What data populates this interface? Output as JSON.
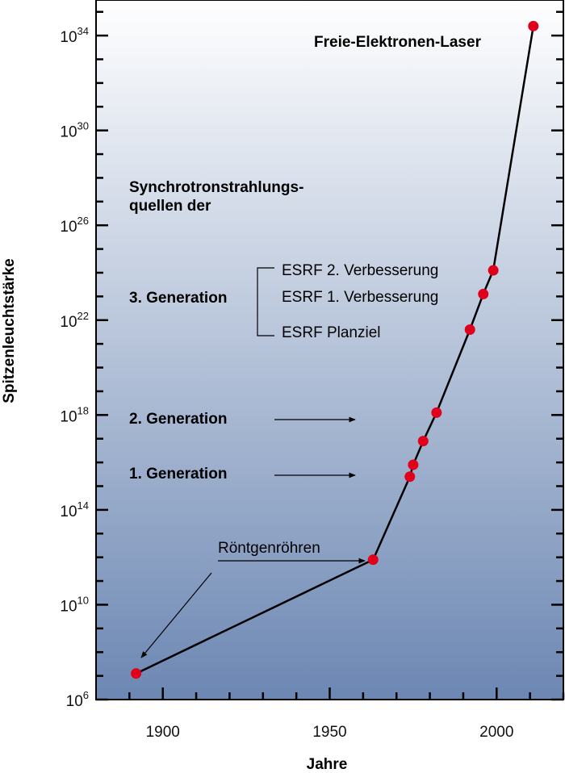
{
  "chart_data": {
    "type": "line",
    "title": "",
    "xlabel": "Jahre",
    "ylabel": "Spitzenleuchtstärke",
    "xlim": [
      1880,
      2020
    ],
    "ylim": [
      6,
      35.5
    ],
    "y_scale": "log10",
    "x_ticks": [
      {
        "value": 1900,
        "label": "1900"
      },
      {
        "value": 1950,
        "label": "1950"
      },
      {
        "value": 2000,
        "label": "2000"
      }
    ],
    "y_ticks": [
      {
        "value": 6,
        "base": "10",
        "exp": "6"
      },
      {
        "value": 10,
        "base": "10",
        "exp": "10"
      },
      {
        "value": 14,
        "base": "10",
        "exp": "14"
      },
      {
        "value": 18,
        "base": "10",
        "exp": "18"
      },
      {
        "value": 22,
        "base": "10",
        "exp": "22"
      },
      {
        "value": 26,
        "base": "10",
        "exp": "26"
      },
      {
        "value": 30,
        "base": "10",
        "exp": "30"
      },
      {
        "value": 34,
        "base": "10",
        "exp": "34"
      }
    ],
    "grid": false,
    "series": [
      {
        "color": "#e0001b",
        "points": [
          {
            "x": 1892,
            "y": 7.1
          },
          {
            "x": 1963,
            "y": 11.9
          },
          {
            "x": 1974,
            "y": 15.4
          },
          {
            "x": 1975,
            "y": 15.9
          },
          {
            "x": 1978,
            "y": 16.9
          },
          {
            "x": 1982,
            "y": 18.1
          },
          {
            "x": 1992,
            "y": 21.6
          },
          {
            "x": 1996,
            "y": 23.1
          },
          {
            "x": 1999,
            "y": 24.1
          },
          {
            "x": 2011,
            "y": 34.4
          }
        ]
      }
    ],
    "annotations": [
      {
        "id": "fel",
        "text": "Freie-Elektronen-Laser",
        "bold": true
      },
      {
        "id": "sync1",
        "text": "Synchrotronstrahlungs-",
        "bold": true
      },
      {
        "id": "sync2",
        "text": "quellen der",
        "bold": true
      },
      {
        "id": "gen3",
        "text": "3. Generation",
        "bold": true
      },
      {
        "id": "gen2",
        "text": "2. Generation",
        "bold": true
      },
      {
        "id": "gen1",
        "text": "1. Generation",
        "bold": true
      },
      {
        "id": "esrf2",
        "text": "ESRF 2. Verbesserung",
        "bold": false
      },
      {
        "id": "esrf1",
        "text": "ESRF 1. Verbesserung",
        "bold": false
      },
      {
        "id": "esrfp",
        "text": "ESRF Planziel",
        "bold": false
      },
      {
        "id": "roentgen",
        "text": "Röntgenröhren",
        "bold": false
      }
    ],
    "background": {
      "top": "#ffffff",
      "bottom": "#6c87b3"
    },
    "line_color": "#000000",
    "marker_color": "#e0001b"
  }
}
